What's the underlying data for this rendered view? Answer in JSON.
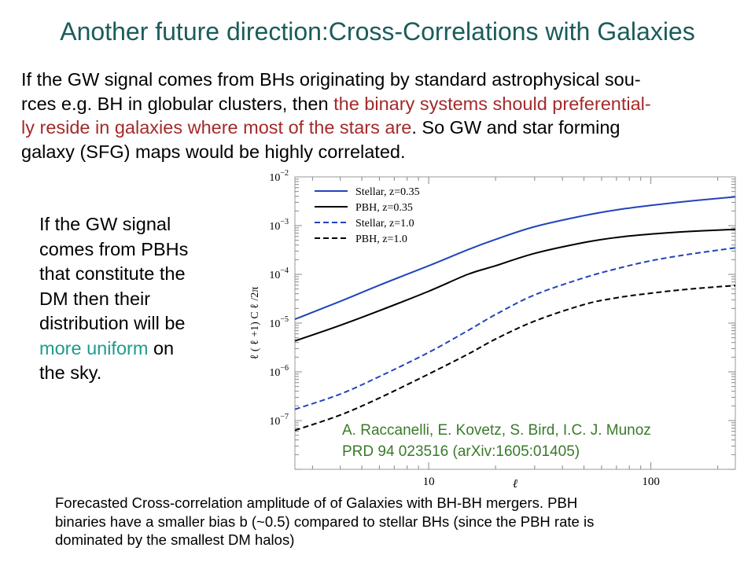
{
  "title": "Another future direction:Cross-Correlations with Galaxies",
  "intro": {
    "l1": "If the GW signal comes from BHs originating by standard astrophysical sou-",
    "l2a": "rces e.g. BH in globular clusters, then ",
    "l2b": "the binary systems should preferential-",
    "l3a": "ly reside in galaxies where most of the stars are",
    "l3b": ". So GW and star forming",
    "l4": "galaxy (SFG) maps would be highly correlated."
  },
  "side": {
    "l1": "If the GW signal",
    "l2": "comes from PBHs",
    "l3": "that constitute the",
    "l4": "DM then their",
    "l5": "distribution will be",
    "l6a": "more uniform",
    "l6b": " on",
    "l7": "the sky."
  },
  "caption": {
    "l1": "Forecasted Cross-correlation amplitude of of Galaxies with BH-BH mergers. PBH",
    "l2": "binaries have a smaller bias b (~0.5) compared to stellar BHs (since the PBH rate is",
    "l3": "dominated by the smallest DM halos)"
  },
  "colors": {
    "title": "#1a5c5a",
    "highlight_red": "#a52a2a",
    "highlight_teal": "#1e9a8e",
    "stellar": "#2244bb",
    "pbh": "#000000",
    "citation": "#3a7a2a"
  },
  "chart_data": {
    "type": "line",
    "xlabel": "ℓ",
    "ylabel": "ℓ ( ℓ +1) C ℓ /2π",
    "x_scale": "log",
    "y_scale": "log",
    "xlim": [
      2.5,
      240
    ],
    "ylim": [
      1e-08,
      0.01
    ],
    "x_ticks": [
      {
        "value": 10,
        "label": "10"
      },
      {
        "value": 100,
        "label": "100"
      }
    ],
    "y_ticks": [
      {
        "value": 1e-07,
        "base": "10",
        "exp": "−7"
      },
      {
        "value": 1e-06,
        "base": "10",
        "exp": "−6"
      },
      {
        "value": 1e-05,
        "base": "10",
        "exp": "−5"
      },
      {
        "value": 0.0001,
        "base": "10",
        "exp": "−4"
      },
      {
        "value": 0.001,
        "base": "10",
        "exp": "−3"
      },
      {
        "value": 0.01,
        "base": "10",
        "exp": "−2"
      }
    ],
    "legend_position": "top-left",
    "series": [
      {
        "name": "Stellar, z=0.35",
        "color": "#2244bb",
        "dash": false,
        "x": [
          2.5,
          4,
          6,
          10,
          15,
          20,
          30,
          50,
          70,
          100,
          150,
          240
        ],
        "y": [
          1.2e-05,
          2.8e-05,
          6e-05,
          0.00015,
          0.00032,
          0.00052,
          0.00095,
          0.0016,
          0.0021,
          0.0026,
          0.0032,
          0.0039
        ]
      },
      {
        "name": "PBH, z=0.35",
        "color": "#000000",
        "dash": false,
        "x": [
          2.5,
          4,
          6,
          10,
          15,
          20,
          30,
          50,
          70,
          100,
          150,
          240
        ],
        "y": [
          4.3e-06,
          9e-06,
          1.8e-05,
          4.5e-05,
          0.0001,
          0.00015,
          0.00027,
          0.00045,
          0.00057,
          0.00067,
          0.00076,
          0.00084
        ]
      },
      {
        "name": "Stellar, z=1.0",
        "color": "#2244bb",
        "dash": true,
        "x": [
          2.5,
          4,
          6,
          10,
          15,
          20,
          30,
          50,
          70,
          100,
          150,
          240
        ],
        "y": [
          1.7e-07,
          3.5e-07,
          8e-07,
          2.5e-06,
          7e-06,
          1.5e-05,
          3.8e-05,
          8.5e-05,
          0.00013,
          0.00019,
          0.00026,
          0.00035
        ]
      },
      {
        "name": "PBH, z=1.0",
        "color": "#000000",
        "dash": true,
        "x": [
          2.5,
          4,
          6,
          10,
          15,
          20,
          30,
          50,
          70,
          100,
          150,
          240
        ],
        "y": [
          6.3e-08,
          1.3e-07,
          2.9e-07,
          9e-07,
          2.3e-06,
          4.7e-06,
          1.1e-05,
          2.4e-05,
          3.3e-05,
          4.1e-05,
          5e-05,
          5.9e-05
        ]
      }
    ],
    "annotation": {
      "l1": "A.  Raccanelli, E. Kovetz, S. Bird,  I.C. J. Munoz",
      "l2": "PRD 94 023516 (arXiv:1605:01405)"
    }
  }
}
